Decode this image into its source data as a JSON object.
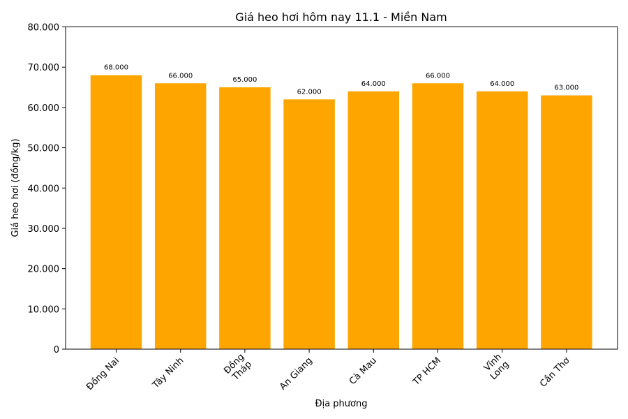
{
  "chart_data": {
    "type": "bar",
    "title": "Giá heo hơi hôm nay 11.1 - Miền Nam",
    "xlabel": "Địa phương",
    "ylabel": "Giá heo hơi (đồng/kg)",
    "categories": [
      "Đồng Nai",
      "Tây Ninh",
      "Đồng\nTháp",
      "An Giang",
      "Cà Mau",
      "TP HCM",
      "Vĩnh\nLong",
      "Cần Thơ"
    ],
    "values": [
      68000,
      66000,
      65000,
      62000,
      64000,
      66000,
      64000,
      63000
    ],
    "data_labels": [
      "68.000",
      "66.000",
      "65.000",
      "62.000",
      "64.000",
      "66.000",
      "64.000",
      "63.000"
    ],
    "ylim": [
      0,
      80000
    ],
    "yticks": [
      0,
      10000,
      20000,
      30000,
      40000,
      50000,
      60000,
      70000,
      80000
    ],
    "ytick_labels": [
      "0",
      "10.000",
      "20.000",
      "30.000",
      "40.000",
      "50.000",
      "60.000",
      "70.000",
      "80.000"
    ],
    "bar_color": "#ffa500",
    "grid": false,
    "legend": "none"
  }
}
